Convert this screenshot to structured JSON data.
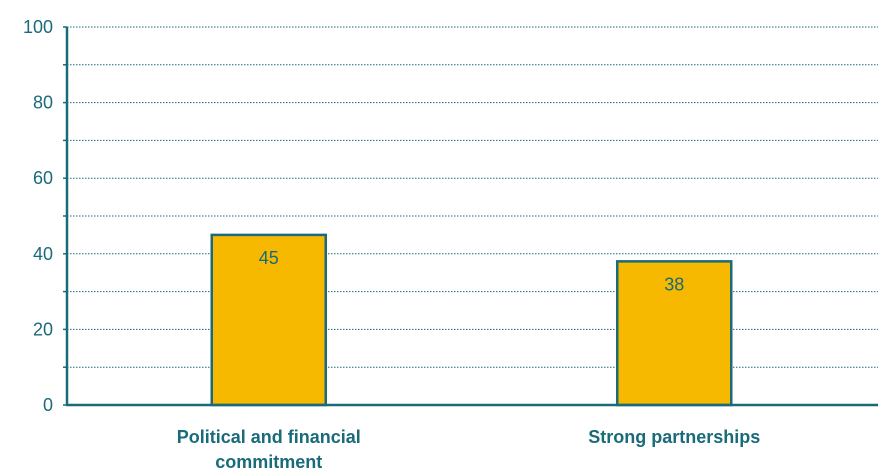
{
  "chart_data": {
    "type": "bar",
    "categories": [
      "Political and financial commitment",
      "Strong partnerships"
    ],
    "category_lines": [
      [
        "Political and financial",
        "commitment"
      ],
      [
        "Strong partnerships"
      ]
    ],
    "values": [
      45,
      38
    ],
    "data_labels": [
      "45",
      "38"
    ],
    "title": "",
    "xlabel": "",
    "ylabel": "",
    "ylim": [
      0,
      100
    ],
    "yticks": [
      0,
      20,
      40,
      60,
      80,
      100
    ],
    "yticks_labels": [
      "0",
      "20",
      "40",
      "60",
      "80",
      "100"
    ],
    "minor_gridlines": [
      10,
      30,
      50,
      70,
      90
    ],
    "grid": true,
    "legend": "none"
  },
  "colors": {
    "bar_fill": "#F7B800",
    "bar_stroke": "#1a6b7a",
    "axis": "#1a6b7a",
    "grid": "#1a6b7a",
    "text": "#1a6b7a"
  }
}
